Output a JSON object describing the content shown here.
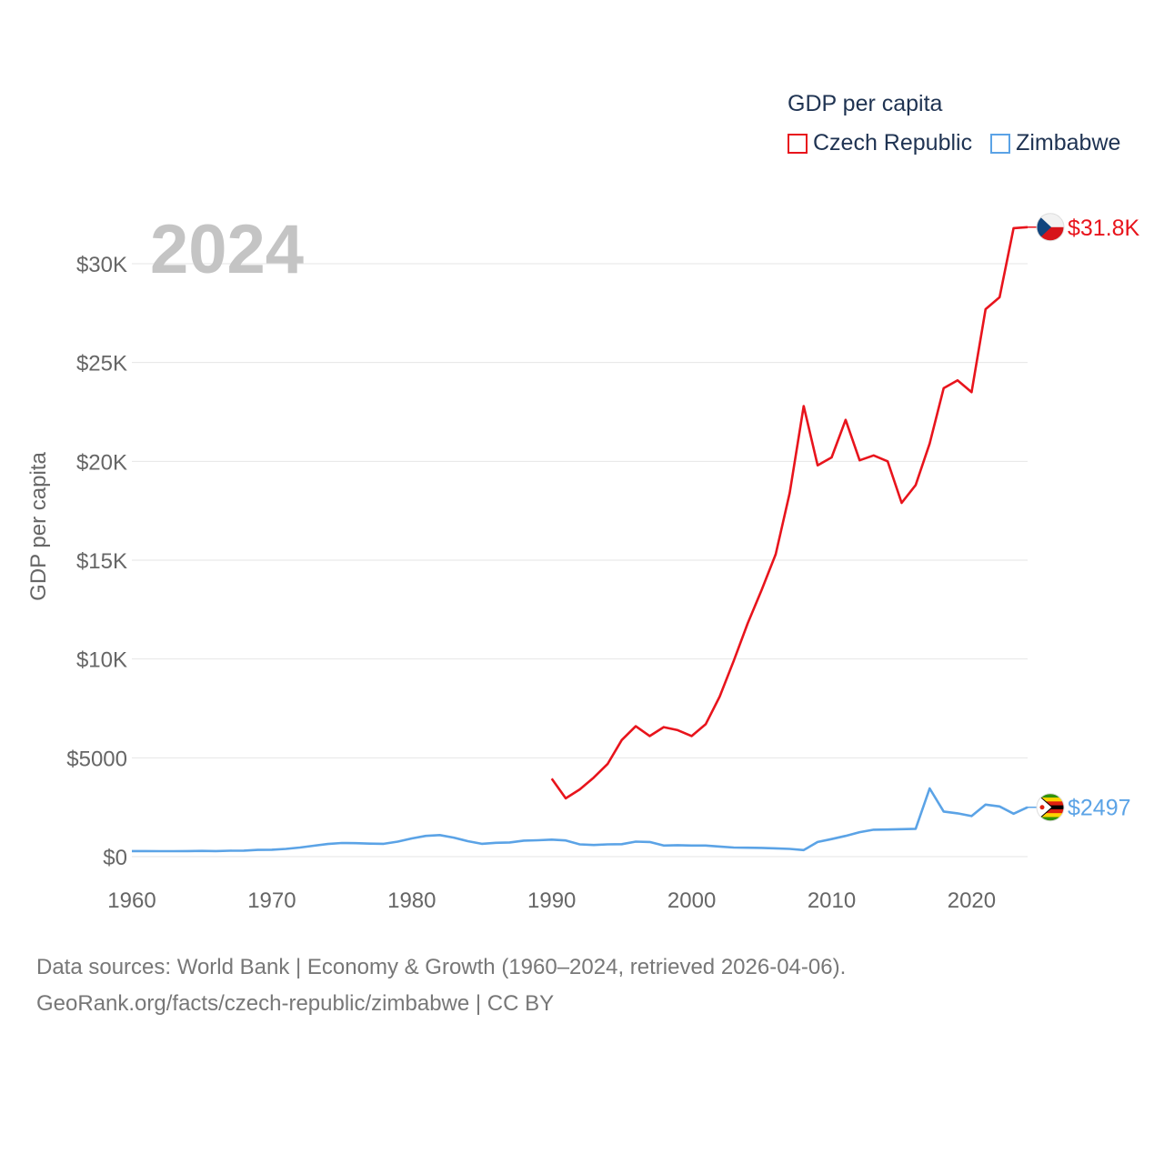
{
  "chart_data": {
    "type": "line",
    "title": "GDP per capita",
    "ylabel": "GDP per capita",
    "xlabel": "",
    "year_label": "2024",
    "xlim": [
      1960,
      2024
    ],
    "ylim": [
      0,
      32000
    ],
    "x_ticks": [
      1960,
      1970,
      1980,
      1990,
      2000,
      2010,
      2020
    ],
    "y_ticks": [
      {
        "value": 0,
        "label": "$0"
      },
      {
        "value": 5000,
        "label": "$5000"
      },
      {
        "value": 10000,
        "label": "$10K"
      },
      {
        "value": 15000,
        "label": "$15K"
      },
      {
        "value": 20000,
        "label": "$20K"
      },
      {
        "value": 25000,
        "label": "$25K"
      },
      {
        "value": 30000,
        "label": "$30K"
      }
    ],
    "series": [
      {
        "name": "Czech Republic",
        "color": "#e8141c",
        "end_label": "$31.8K",
        "flag_icon": "czech-flag-icon",
        "points": [
          [
            1990,
            3950
          ],
          [
            1991,
            2950
          ],
          [
            1992,
            3400
          ],
          [
            1993,
            4000
          ],
          [
            1994,
            4700
          ],
          [
            1995,
            5900
          ],
          [
            1996,
            6600
          ],
          [
            1997,
            6100
          ],
          [
            1998,
            6550
          ],
          [
            1999,
            6400
          ],
          [
            2000,
            6100
          ],
          [
            2001,
            6700
          ],
          [
            2002,
            8100
          ],
          [
            2003,
            9900
          ],
          [
            2004,
            11800
          ],
          [
            2005,
            13500
          ],
          [
            2006,
            15300
          ],
          [
            2007,
            18400
          ],
          [
            2008,
            22800
          ],
          [
            2009,
            19800
          ],
          [
            2010,
            20200
          ],
          [
            2011,
            22100
          ],
          [
            2012,
            20050
          ],
          [
            2013,
            20300
          ],
          [
            2014,
            20000
          ],
          [
            2015,
            17900
          ],
          [
            2016,
            18800
          ],
          [
            2017,
            20900
          ],
          [
            2018,
            23700
          ],
          [
            2019,
            24100
          ],
          [
            2020,
            23500
          ],
          [
            2021,
            27700
          ],
          [
            2022,
            28300
          ],
          [
            2023,
            31800
          ],
          [
            2024,
            31850
          ]
        ]
      },
      {
        "name": "Zimbabwe",
        "color": "#5ba3e6",
        "end_label": "$2497",
        "flag_icon": "zimbabwe-flag-icon",
        "points": [
          [
            1960,
            280
          ],
          [
            1961,
            280
          ],
          [
            1962,
            275
          ],
          [
            1963,
            275
          ],
          [
            1964,
            280
          ],
          [
            1965,
            290
          ],
          [
            1966,
            280
          ],
          [
            1967,
            300
          ],
          [
            1968,
            305
          ],
          [
            1969,
            340
          ],
          [
            1970,
            350
          ],
          [
            1971,
            390
          ],
          [
            1972,
            460
          ],
          [
            1973,
            550
          ],
          [
            1974,
            640
          ],
          [
            1975,
            690
          ],
          [
            1976,
            680
          ],
          [
            1977,
            660
          ],
          [
            1978,
            650
          ],
          [
            1979,
            760
          ],
          [
            1980,
            920
          ],
          [
            1981,
            1050
          ],
          [
            1982,
            1090
          ],
          [
            1983,
            960
          ],
          [
            1984,
            780
          ],
          [
            1985,
            650
          ],
          [
            1986,
            700
          ],
          [
            1987,
            720
          ],
          [
            1988,
            810
          ],
          [
            1989,
            830
          ],
          [
            1990,
            860
          ],
          [
            1991,
            820
          ],
          [
            1992,
            620
          ],
          [
            1993,
            590
          ],
          [
            1994,
            620
          ],
          [
            1995,
            630
          ],
          [
            1996,
            760
          ],
          [
            1997,
            740
          ],
          [
            1998,
            560
          ],
          [
            1999,
            580
          ],
          [
            2000,
            560
          ],
          [
            2001,
            560
          ],
          [
            2002,
            510
          ],
          [
            2003,
            460
          ],
          [
            2004,
            450
          ],
          [
            2005,
            440
          ],
          [
            2006,
            420
          ],
          [
            2007,
            390
          ],
          [
            2008,
            330
          ],
          [
            2009,
            740
          ],
          [
            2010,
            890
          ],
          [
            2011,
            1050
          ],
          [
            2012,
            1240
          ],
          [
            2013,
            1360
          ],
          [
            2014,
            1370
          ],
          [
            2015,
            1390
          ],
          [
            2016,
            1410
          ],
          [
            2017,
            3450
          ],
          [
            2018,
            2280
          ],
          [
            2019,
            2190
          ],
          [
            2020,
            2050
          ],
          [
            2021,
            2630
          ],
          [
            2022,
            2540
          ],
          [
            2023,
            2170
          ],
          [
            2024,
            2497
          ]
        ]
      }
    ]
  },
  "legend": {
    "title": "GDP per capita",
    "items": [
      "Czech Republic",
      "Zimbabwe"
    ]
  },
  "footer": {
    "line1": "Data sources: World Bank | Economy & Growth (1960–2024, retrieved 2026-04-06).",
    "line2": "GeoRank.org/facts/czech-republic/zimbabwe | CC BY"
  },
  "colors": {
    "czech": "#e8141c",
    "zimbabwe": "#5ba3e6",
    "grid": "#e6e6e6",
    "tick_text": "#666666",
    "year_text": "#c4c4c4"
  }
}
